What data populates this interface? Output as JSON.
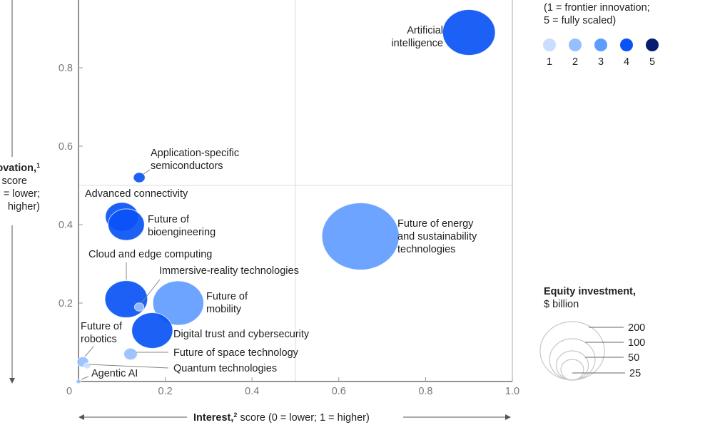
{
  "chart_data": {
    "type": "scatter",
    "subtype": "bubble",
    "xlabel": {
      "bold": "Interest,",
      "sup": "2",
      "rest": " score (0 = lower; 1 = higher)"
    },
    "ylabel": {
      "lines": [
        "ovation,",
        "score",
        "= lower;",
        "higher)"
      ],
      "sup": "1"
    },
    "xlim": [
      0,
      1.0
    ],
    "ylim": [
      0,
      0.97
    ],
    "xticks": [
      "0",
      "0.2",
      "0.4",
      "0.6",
      "0.8",
      "1.0"
    ],
    "yticks": [
      "0.2",
      "0.4",
      "0.6",
      "0.8"
    ],
    "grid": "quadrant lines at 0.5",
    "color_legend": {
      "lines": [
        "(1 = frontier innovation;",
        "5 = fully scaled)"
      ],
      "levels": [
        "1",
        "2",
        "3",
        "4",
        "5"
      ],
      "colors": [
        "#c9ddff",
        "#96bfff",
        "#5f9cff",
        "#0a52f5",
        "#061d70"
      ]
    },
    "size_legend": {
      "title": "Equity investment,",
      "subtitle": "$ billion",
      "values": [
        200,
        100,
        50,
        25
      ],
      "labels": [
        "200",
        "100",
        "50",
        "25"
      ]
    },
    "points": [
      {
        "name": "Artificial intelligence",
        "lines": [
          "Artificial",
          "intelligence"
        ],
        "x": 0.9,
        "y": 0.89,
        "equity": 122,
        "level": 4
      },
      {
        "name": "Application-specific semiconductors",
        "lines": [
          "Application-specific",
          "semiconductors"
        ],
        "x": 0.14,
        "y": 0.52,
        "equity": 6,
        "level": 4
      },
      {
        "name": "Advanced connectivity",
        "lines": [
          "Advanced connectivity"
        ],
        "x": 0.1,
        "y": 0.42,
        "equity": 48,
        "level": 4
      },
      {
        "name": "Future of bioengineering",
        "lines": [
          "Future of",
          "bioengineering"
        ],
        "x": 0.11,
        "y": 0.4,
        "equity": 58,
        "level": 4
      },
      {
        "name": "Future of energy and sustainability technologies",
        "lines": [
          "Future of energy",
          "and sustainability",
          "technologies"
        ],
        "x": 0.65,
        "y": 0.37,
        "equity": 263,
        "level": 3
      },
      {
        "name": "Cloud and edge computing",
        "lines": [
          "Cloud and edge computing"
        ],
        "x": 0.11,
        "y": 0.21,
        "equity": 80,
        "level": 4
      },
      {
        "name": "Immersive-reality technologies",
        "lines": [
          "Immersive-reality technologies"
        ],
        "x": 0.14,
        "y": 0.19,
        "equity": 4,
        "level": 2
      },
      {
        "name": "Future of mobility",
        "lines": [
          "Future of",
          "mobility"
        ],
        "x": 0.23,
        "y": 0.2,
        "equity": 114,
        "level": 3
      },
      {
        "name": "Digital trust and cybersecurity",
        "lines": [
          "Digital trust and cybersecurity"
        ],
        "x": 0.17,
        "y": 0.13,
        "equity": 74,
        "level": 4
      },
      {
        "name": "Future of space technology",
        "lines": [
          "Future of space technology"
        ],
        "x": 0.12,
        "y": 0.07,
        "equity": 8,
        "level": 2
      },
      {
        "name": "Future of robotics",
        "lines": [
          "Future of",
          "robotics"
        ],
        "x": 0.01,
        "y": 0.05,
        "equity": 6,
        "level": 2
      },
      {
        "name": "Quantum technologies",
        "lines": [
          "Quantum technologies"
        ],
        "x": 0.02,
        "y": 0.04,
        "equity": 2,
        "level": 1
      },
      {
        "name": "Agentic AI",
        "lines": [
          "Agentic AI"
        ],
        "x": 0.0,
        "y": 0.0,
        "equity": 1,
        "level": 2
      }
    ]
  }
}
